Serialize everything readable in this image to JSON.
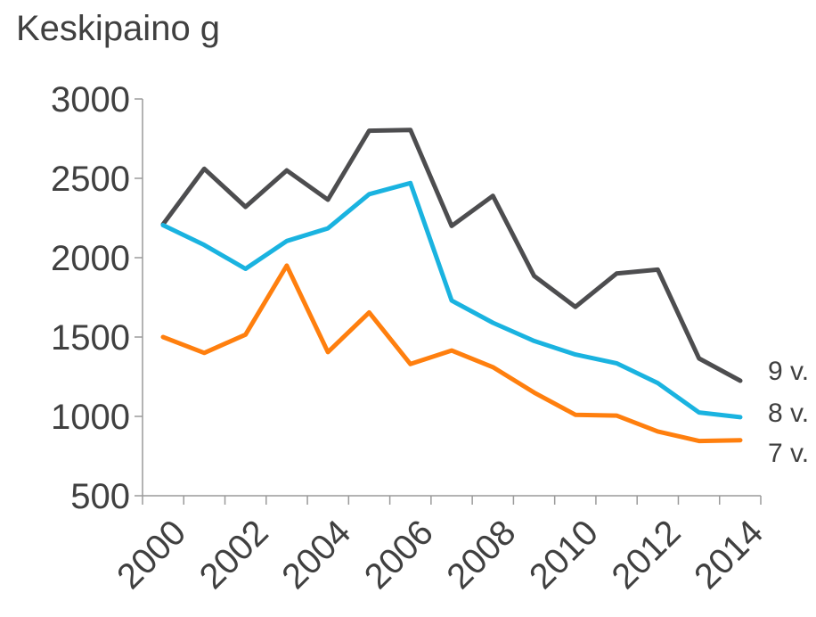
{
  "chart_data": {
    "type": "line",
    "title": "Keskipaino g",
    "xlabel": "",
    "ylabel": "",
    "x": [
      2000,
      2001,
      2002,
      2003,
      2004,
      2005,
      2006,
      2007,
      2008,
      2009,
      2010,
      2011,
      2012,
      2013,
      2014
    ],
    "x_tick_labels": [
      "2000",
      "2002",
      "2004",
      "2006",
      "2008",
      "2010",
      "2012",
      "2014"
    ],
    "y_tick_labels": [
      "500",
      "1000",
      "1500",
      "2000",
      "2500",
      "3000"
    ],
    "ylim": [
      500,
      3000
    ],
    "grid": false,
    "legend": "end-of-line labels",
    "series": [
      {
        "name": "9 v.",
        "color": "#4d4d4f",
        "values": [
          2210,
          2560,
          2320,
          2550,
          2365,
          2800,
          2805,
          2200,
          2390,
          1885,
          1690,
          1900,
          1925,
          1365,
          1225
        ]
      },
      {
        "name": "8 v.",
        "color": "#1ab3e0",
        "values": [
          2205,
          2080,
          1930,
          2105,
          2185,
          2400,
          2470,
          1730,
          1590,
          1475,
          1390,
          1335,
          1210,
          1025,
          995
        ]
      },
      {
        "name": "7 v.",
        "color": "#ff7f0e",
        "values": [
          1500,
          1400,
          1515,
          1950,
          1405,
          1655,
          1330,
          1415,
          1310,
          1150,
          1010,
          1005,
          905,
          845,
          850
        ]
      }
    ]
  }
}
